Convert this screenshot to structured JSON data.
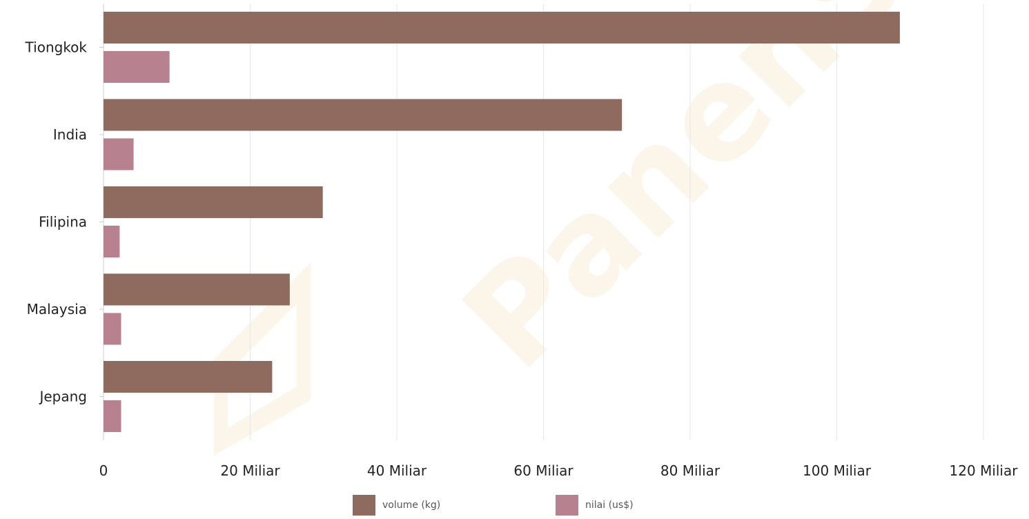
{
  "chart_data": {
    "type": "bar",
    "orientation": "horizontal",
    "categories": [
      "Tiongkok",
      "India",
      "Filipina",
      "Malaysia",
      "Jepang"
    ],
    "series": [
      {
        "name": "volume (kg)",
        "color": "#8f6a5f",
        "values": [
          108.6,
          70.7,
          29.9,
          25.4,
          23.0
        ]
      },
      {
        "name": "nilai (us$)",
        "color": "#b8818f",
        "values": [
          9.0,
          4.1,
          2.2,
          2.4,
          2.4
        ]
      }
    ],
    "x_ticks": [
      {
        "value": 0,
        "label": "0"
      },
      {
        "value": 20,
        "label": "20 Miliar"
      },
      {
        "value": 40,
        "label": "40 Miliar"
      },
      {
        "value": 60,
        "label": "60 Miliar"
      },
      {
        "value": 80,
        "label": "80 Miliar"
      },
      {
        "value": 100,
        "label": "100 Miliar"
      },
      {
        "value": 120,
        "label": "120 Miliar"
      }
    ],
    "xlim": [
      0,
      120
    ],
    "grid": "vertical",
    "legend": "bottom-center"
  },
  "watermark": {
    "text": "PanenSAE",
    "logo": "panen-logo-icon"
  }
}
